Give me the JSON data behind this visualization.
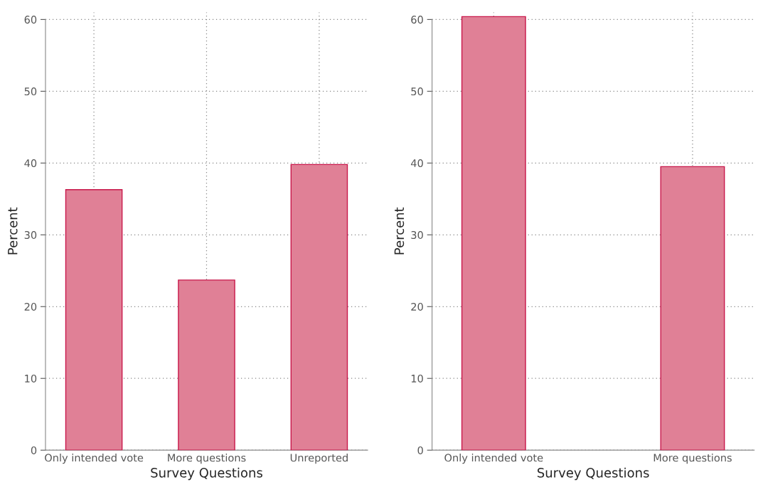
{
  "chart_data": [
    {
      "type": "bar",
      "xlabel": "Survey Questions",
      "ylabel": "Percent",
      "categories": [
        "Only intended vote",
        "More questions",
        "Unreported"
      ],
      "values": [
        36.3,
        23.7,
        39.8
      ],
      "color": "#e08096",
      "ylim": [
        0,
        61
      ],
      "yticks": [
        0,
        10,
        20,
        30,
        40,
        50,
        60
      ],
      "grid": true
    },
    {
      "type": "bar",
      "xlabel": "Survey Questions",
      "ylabel": "Percent",
      "categories": [
        "Only intended vote",
        "More questions"
      ],
      "values": [
        60.4,
        39.5
      ],
      "color": "#e08096",
      "ylim": [
        0,
        61
      ],
      "yticks": [
        0,
        10,
        20,
        30,
        40,
        50,
        60
      ],
      "grid": true
    }
  ]
}
